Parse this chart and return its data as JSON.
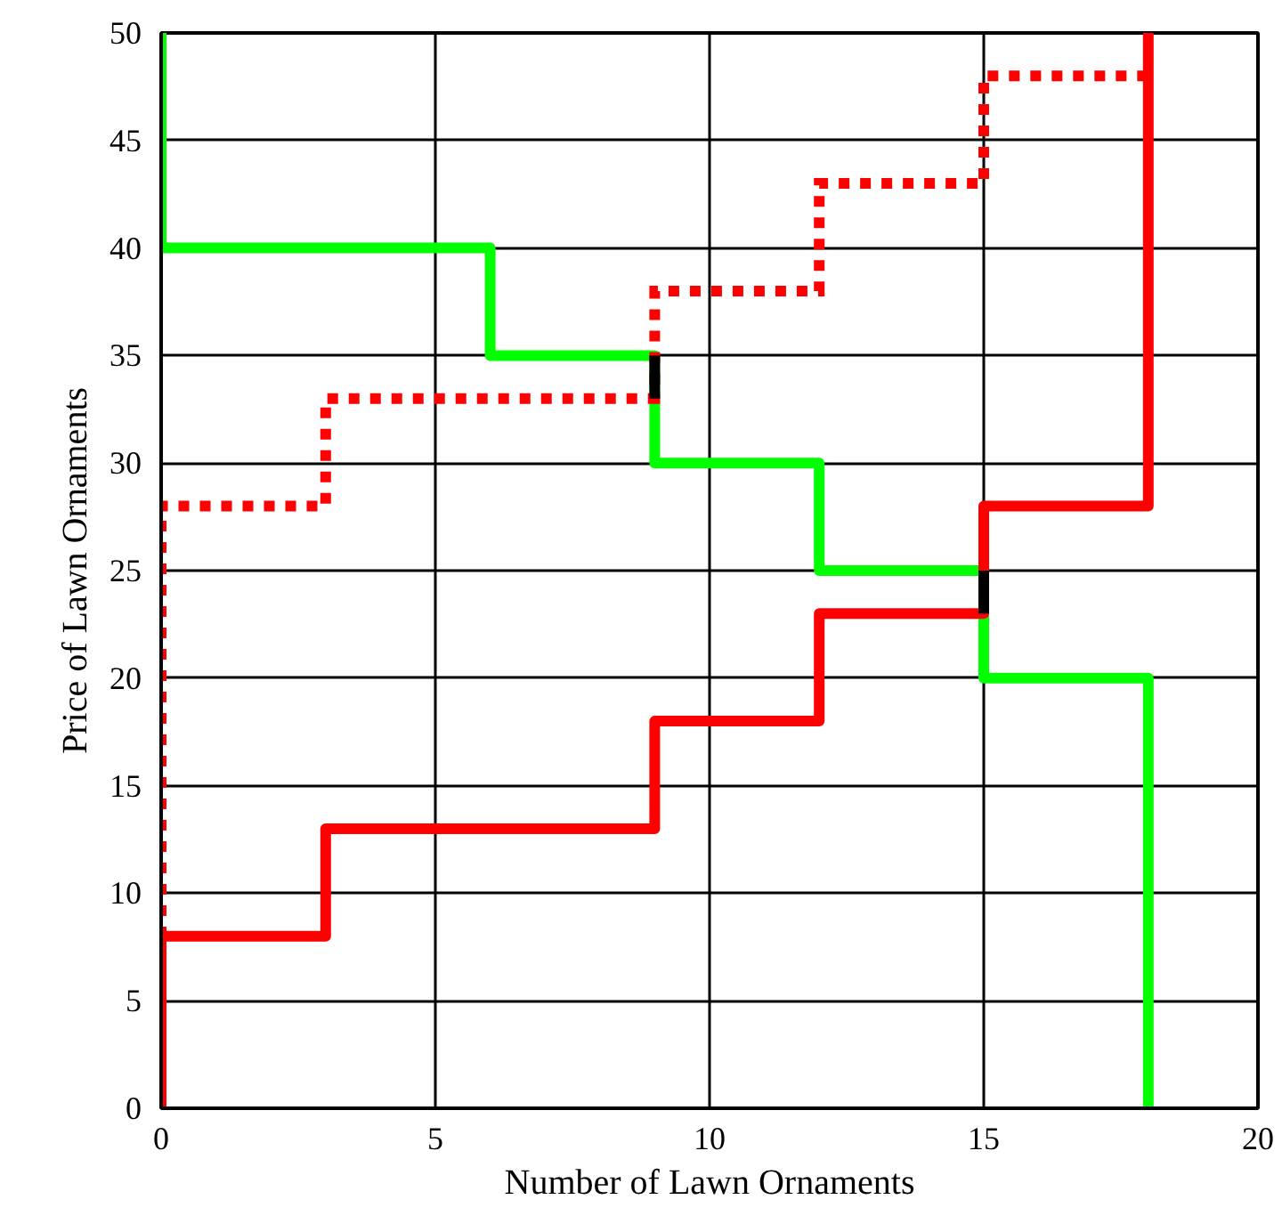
{
  "chart_data": {
    "type": "line",
    "xlabel": "Number of Lawn Ornaments",
    "ylabel": "Price of Lawn Ornaments",
    "xlim": [
      0,
      20
    ],
    "xticks": [
      0,
      5,
      10,
      15,
      20
    ],
    "ylim": [
      0,
      50
    ],
    "yticks": [
      0,
      5,
      10,
      15,
      20,
      25,
      30,
      35,
      40,
      45,
      50
    ],
    "grid": true,
    "marker": "none",
    "series": [
      {
        "color": "#00ff00",
        "line_style": "solid",
        "x": [
          0,
          0,
          6,
          6,
          9,
          9,
          12,
          12,
          15,
          15,
          18,
          18
        ],
        "values": [
          50,
          40,
          40,
          35,
          35,
          30,
          30,
          25,
          25,
          20,
          20,
          0
        ]
      },
      {
        "color": "#ff0000",
        "line_style": "solid",
        "x": [
          0,
          0,
          3,
          3,
          9,
          9,
          12,
          12,
          15,
          15,
          18,
          18
        ],
        "values": [
          0,
          8,
          8,
          13,
          13,
          18,
          18,
          23,
          23,
          28,
          28,
          50
        ]
      },
      {
        "color": "#ff0000",
        "line_style": "dotted",
        "x": [
          0,
          0,
          3,
          3,
          9,
          9,
          12,
          12,
          15,
          15,
          18
        ],
        "values": [
          0,
          28,
          28,
          33,
          33,
          38,
          38,
          43,
          43,
          48,
          48
        ]
      },
      {
        "color": "#000000",
        "line_style": "solid",
        "x": [
          9,
          9
        ],
        "values": [
          33,
          35
        ]
      },
      {
        "color": "#000000",
        "line_style": "solid",
        "x": [
          15,
          15
        ],
        "values": [
          23,
          25
        ]
      }
    ]
  }
}
